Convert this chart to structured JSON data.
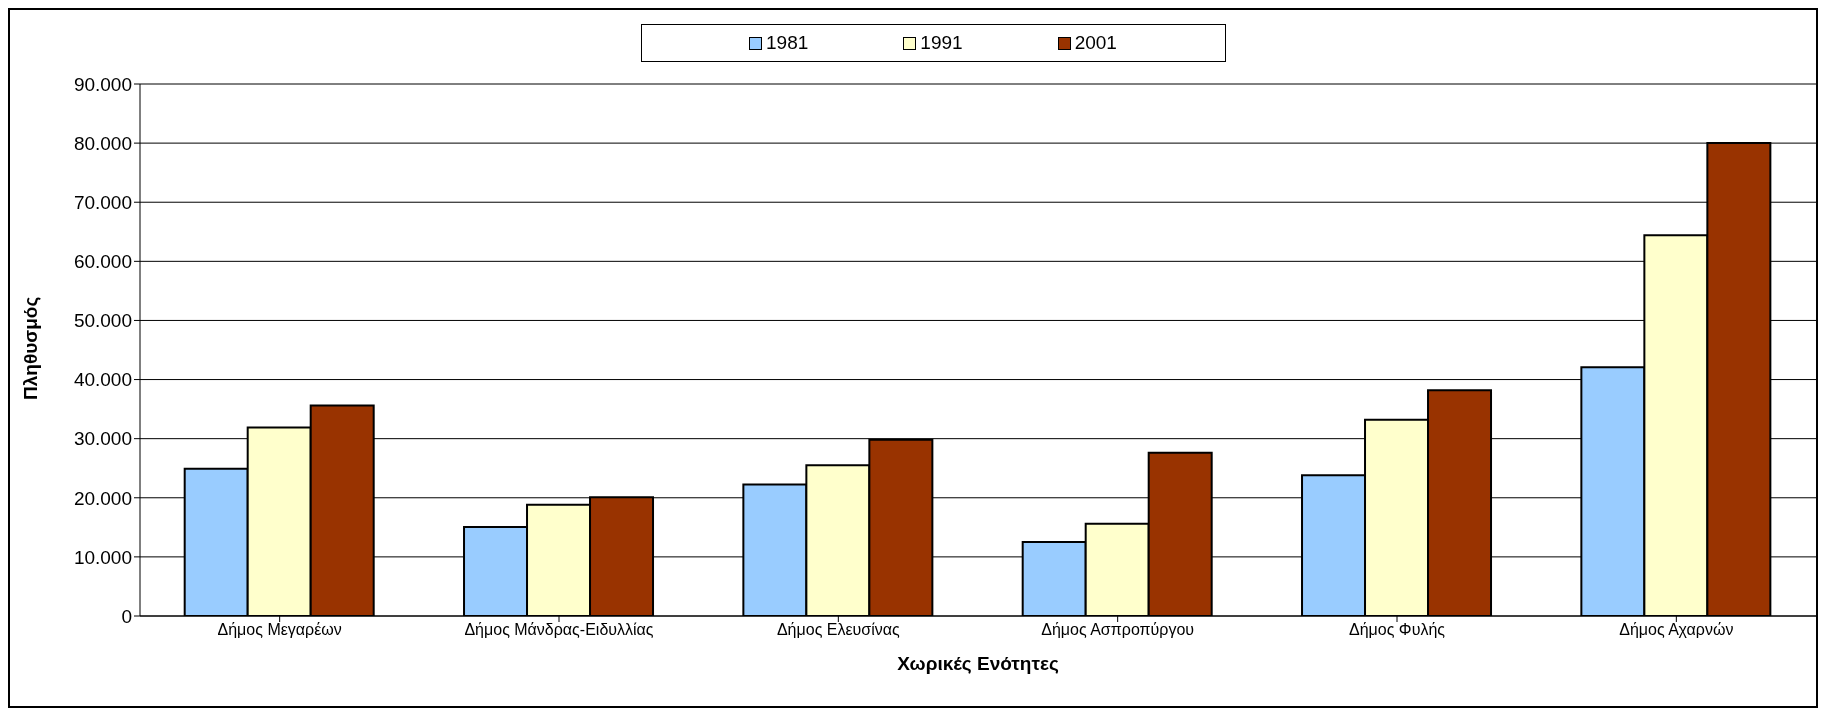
{
  "chart_data": {
    "type": "bar",
    "xlabel": "Χωρικές Ενότητες",
    "ylabel": "Πληθυσμός",
    "categories": [
      "Δήμος Μεγαρέων",
      "Δήμος Μάνδρας-Ειδυλλίας",
      "Δήμος Ελευσίνας",
      "Δήμος Ασπροπύργου",
      "Δήμος Φυλής",
      "Δήμος Αχαρνών"
    ],
    "series": [
      {
        "name": "1981",
        "color": "#99ccff",
        "values": [
          24900,
          15050,
          22250,
          12500,
          23800,
          42100
        ]
      },
      {
        "name": "1991",
        "color": "#ffffcc",
        "values": [
          31900,
          18800,
          25500,
          15600,
          33200,
          64400
        ]
      },
      {
        "name": "2001",
        "color": "#993300",
        "values": [
          35600,
          20100,
          29800,
          27600,
          38200,
          80000
        ]
      }
    ],
    "ylim": [
      0,
      90000
    ],
    "yticks": [
      {
        "value": 0,
        "label": "0"
      },
      {
        "value": 10000,
        "label": "10.000"
      },
      {
        "value": 20000,
        "label": "20.000"
      },
      {
        "value": 30000,
        "label": "30.000"
      },
      {
        "value": 40000,
        "label": "40.000"
      },
      {
        "value": 50000,
        "label": "50.000"
      },
      {
        "value": 60000,
        "label": "60.000"
      },
      {
        "value": 70000,
        "label": "70.000"
      },
      {
        "value": 80000,
        "label": "80.000"
      },
      {
        "value": 90000,
        "label": "90.000"
      }
    ],
    "grid": "y",
    "legend": "top"
  }
}
